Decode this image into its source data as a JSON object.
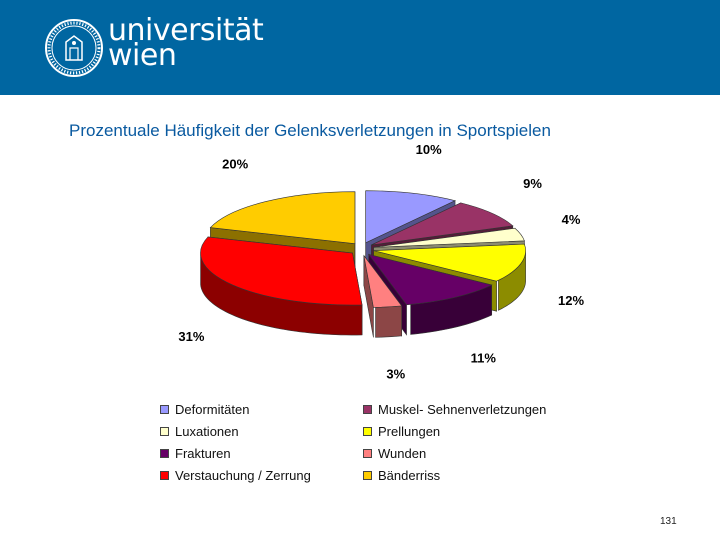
{
  "header": {
    "brand_line1": "universität",
    "brand_line2": "wien",
    "accent_color": "#0066a1"
  },
  "slide_title": "Prozentuale Häufigkeit der Gelenksverletzungen in Sportspielen",
  "page_number": "131",
  "chart_data": {
    "type": "pie",
    "title": "Prozentuale Häufigkeit der Gelenksverletzungen in Sportspielen",
    "three_d": true,
    "exploded": true,
    "legend_position": "bottom",
    "slices": [
      {
        "label": "Deformitäten",
        "value": 10,
        "display": "10%",
        "color": "#9999ff"
      },
      {
        "label": "Muskel- Sehnenverletzungen",
        "value": 9,
        "display": "9%",
        "color": "#993366"
      },
      {
        "label": "Luxationen",
        "value": 4,
        "display": "4%",
        "color": "#ffffcc"
      },
      {
        "label": "Prellungen",
        "value": 12,
        "display": "12%",
        "color": "#ffff00"
      },
      {
        "label": "Frakturen",
        "value": 11,
        "display": "11%",
        "color": "#660066"
      },
      {
        "label": "Wunden",
        "value": 3,
        "display": "3%",
        "color": "#ff8080"
      },
      {
        "label": "Verstauchung / Zerrung",
        "value": 31,
        "display": "31%",
        "color": "#ff0000"
      },
      {
        "label": "Bänderriss",
        "value": 20,
        "display": "20%",
        "color": "#ffcc00"
      }
    ]
  }
}
